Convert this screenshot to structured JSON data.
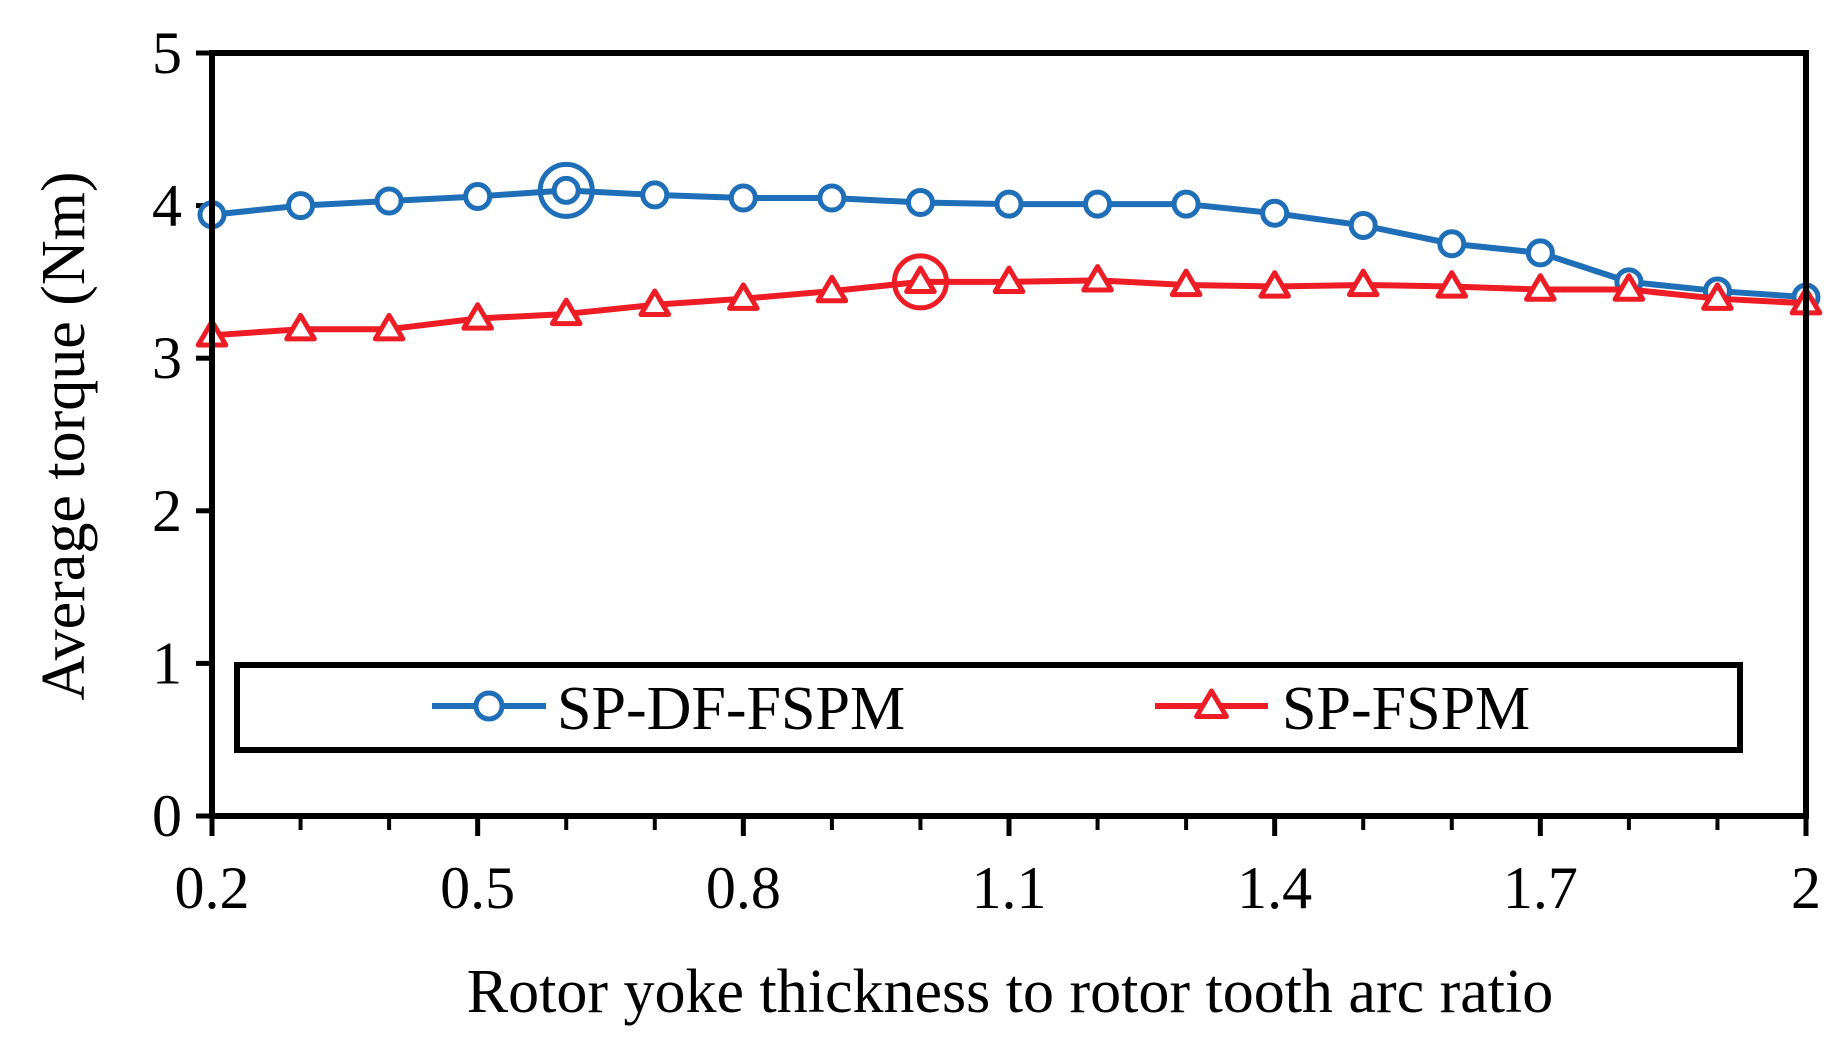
{
  "chart_data": {
    "type": "line",
    "title": "",
    "xlabel": "Rotor yoke thickness to rotor tooth arc ratio",
    "ylabel": "Average torque (Nm)",
    "xlim": [
      0.2,
      2
    ],
    "ylim": [
      0,
      5
    ],
    "x_ticks": [
      0.2,
      0.5,
      0.8,
      1.1,
      1.4,
      1.7,
      2
    ],
    "x_tick_labels": [
      "0.2",
      "0.5",
      "0.8",
      "1.1",
      "1.4",
      "1.7",
      "2"
    ],
    "y_ticks": [
      0,
      1,
      2,
      3,
      4,
      5
    ],
    "y_tick_labels": [
      "0",
      "1",
      "2",
      "3",
      "4",
      "5"
    ],
    "grid": false,
    "legend_position": "bottom-center",
    "x": [
      0.2,
      0.3,
      0.4,
      0.5,
      0.6,
      0.7,
      0.8,
      0.9,
      1.0,
      1.1,
      1.2,
      1.3,
      1.4,
      1.5,
      1.6,
      1.7,
      1.8,
      1.9,
      2.0
    ],
    "series": [
      {
        "name": "SP-DF-FSPM",
        "color": "#1f6fb8",
        "marker": "circle",
        "x": [
          0.2,
          0.3,
          0.4,
          0.5,
          0.6,
          0.7,
          0.8,
          0.9,
          1.0,
          1.1,
          1.2,
          1.3,
          1.4,
          1.5,
          1.6,
          1.7,
          1.8,
          1.9,
          2.0
        ],
        "values": [
          3.94,
          4.0,
          4.03,
          4.06,
          4.1,
          4.07,
          4.05,
          4.05,
          4.02,
          4.01,
          4.01,
          4.01,
          3.95,
          3.87,
          3.75,
          3.69,
          3.5,
          3.44,
          3.4
        ],
        "highlight_x": 0.6
      },
      {
        "name": "SP-FSPM",
        "color": "#ee1c25",
        "marker": "triangle",
        "x": [
          0.2,
          0.3,
          0.4,
          0.5,
          0.6,
          0.7,
          0.8,
          0.9,
          1.0,
          1.1,
          1.2,
          1.3,
          1.4,
          1.5,
          1.6,
          1.7,
          1.8,
          1.9,
          2.0
        ],
        "values": [
          3.15,
          3.19,
          3.19,
          3.26,
          3.29,
          3.35,
          3.39,
          3.44,
          3.5,
          3.5,
          3.51,
          3.48,
          3.47,
          3.48,
          3.47,
          3.45,
          3.45,
          3.39,
          3.36
        ],
        "highlight_x": 1.0
      }
    ]
  }
}
